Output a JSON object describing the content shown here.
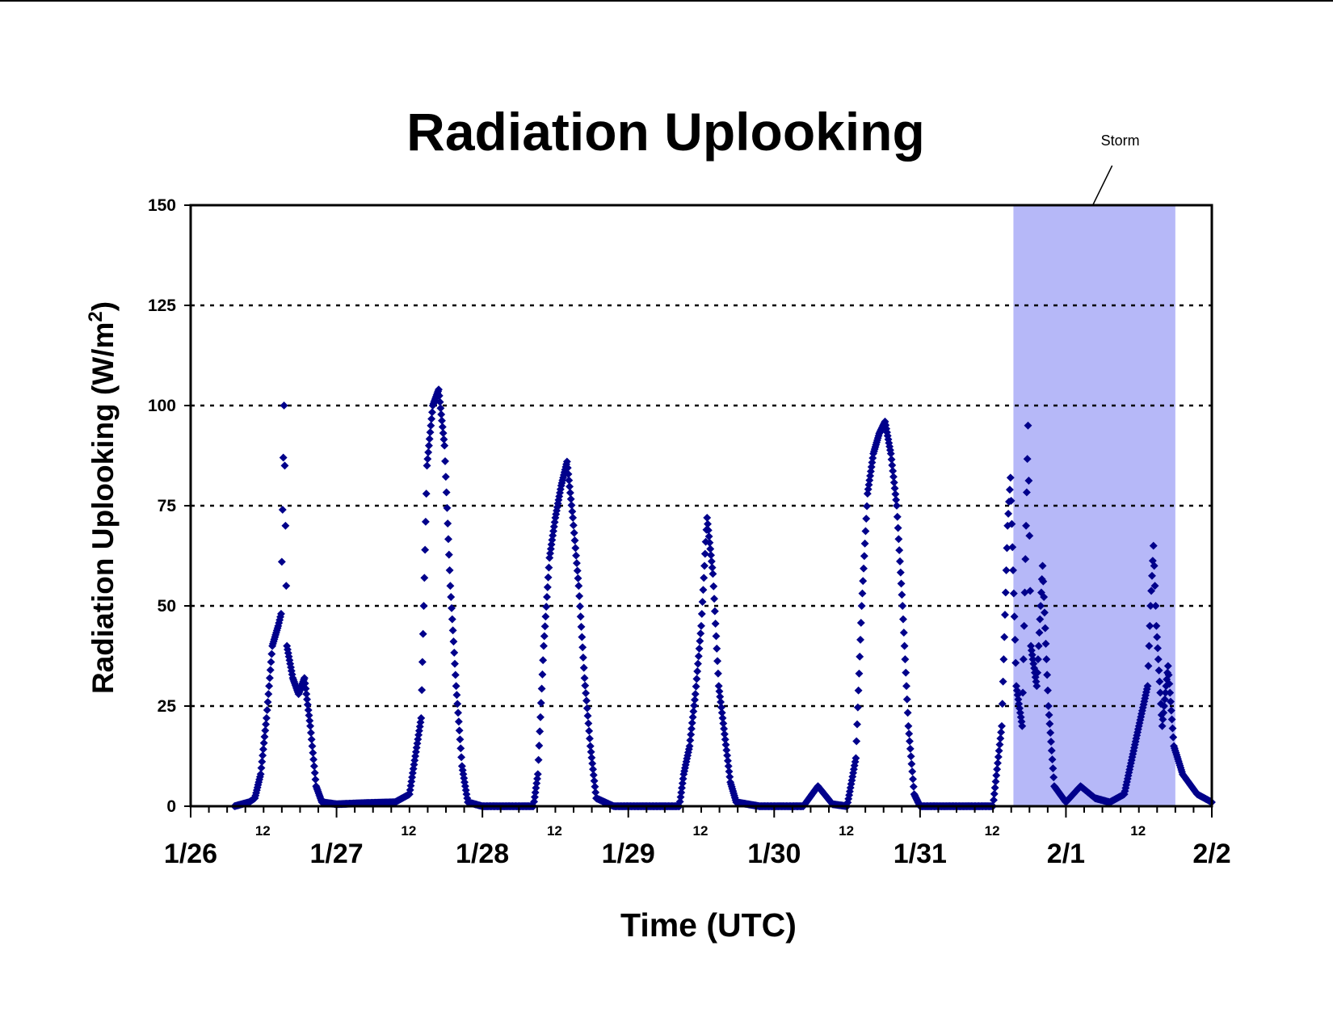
{
  "chart_data": {
    "type": "scatter",
    "title": "Radiation Uplooking",
    "xlabel": "Time (UTC)",
    "ylabel": "Radiation Uplooking (W/m",
    "ylabel_superscript": "2",
    "ylabel_close": ")",
    "ylim": [
      0,
      150
    ],
    "yticks": [
      0,
      25,
      50,
      75,
      100,
      125,
      150
    ],
    "grid": "dotted horizontal lines at each y tick",
    "x_unit": "days since 1/26 00:00 UTC",
    "xlim": [
      0,
      7
    ],
    "date_labels": [
      "1/26",
      "1/27",
      "1/28",
      "1/29",
      "1/30",
      "1/31",
      "2/1",
      "2/2"
    ],
    "noon_label": "12",
    "marker_color": "#00008B",
    "storm": {
      "label": "Storm",
      "start": 5.64,
      "end": 6.75,
      "color": "#B6B8F8"
    },
    "series": [
      {
        "values": [
          [
            0.3,
            0
          ],
          [
            0.4,
            1
          ],
          [
            0.44,
            2
          ],
          [
            0.48,
            8
          ],
          [
            0.52,
            22
          ],
          [
            0.56,
            40
          ],
          [
            0.6,
            45
          ],
          [
            0.62,
            48
          ],
          [
            0.64,
            100
          ],
          [
            0.66,
            40
          ],
          [
            0.7,
            32
          ],
          [
            0.74,
            28
          ],
          [
            0.78,
            32
          ],
          [
            0.82,
            20
          ],
          [
            0.86,
            5
          ],
          [
            0.9,
            1
          ],
          [
            1.0,
            0.5
          ],
          [
            1.2,
            0.8
          ],
          [
            1.4,
            1
          ],
          [
            1.5,
            3
          ],
          [
            1.58,
            22
          ],
          [
            1.62,
            85
          ],
          [
            1.66,
            100
          ],
          [
            1.7,
            104
          ],
          [
            1.74,
            90
          ],
          [
            1.78,
            55
          ],
          [
            1.82,
            30
          ],
          [
            1.86,
            10
          ],
          [
            1.9,
            1
          ],
          [
            2.0,
            0
          ],
          [
            2.2,
            0
          ],
          [
            2.35,
            0
          ],
          [
            2.38,
            8
          ],
          [
            2.42,
            40
          ],
          [
            2.46,
            62
          ],
          [
            2.5,
            72
          ],
          [
            2.54,
            80
          ],
          [
            2.58,
            86
          ],
          [
            2.62,
            72
          ],
          [
            2.66,
            55
          ],
          [
            2.7,
            32
          ],
          [
            2.74,
            15
          ],
          [
            2.78,
            2
          ],
          [
            2.9,
            0
          ],
          [
            3.2,
            0
          ],
          [
            3.35,
            0
          ],
          [
            3.38,
            8
          ],
          [
            3.42,
            15
          ],
          [
            3.46,
            28
          ],
          [
            3.5,
            45
          ],
          [
            3.54,
            72
          ],
          [
            3.58,
            58
          ],
          [
            3.62,
            30
          ],
          [
            3.66,
            18
          ],
          [
            3.7,
            6
          ],
          [
            3.74,
            1
          ],
          [
            3.9,
            0
          ],
          [
            4.2,
            0
          ],
          [
            4.3,
            5
          ],
          [
            4.4,
            0.5
          ],
          [
            4.5,
            0
          ],
          [
            4.56,
            12
          ],
          [
            4.6,
            50
          ],
          [
            4.64,
            78
          ],
          [
            4.68,
            88
          ],
          [
            4.72,
            93
          ],
          [
            4.76,
            96
          ],
          [
            4.8,
            88
          ],
          [
            4.84,
            75
          ],
          [
            4.88,
            50
          ],
          [
            4.92,
            20
          ],
          [
            4.96,
            3
          ],
          [
            5.0,
            0
          ],
          [
            5.3,
            0
          ],
          [
            5.5,
            0
          ],
          [
            5.56,
            20
          ],
          [
            5.6,
            70
          ],
          [
            5.62,
            82
          ],
          [
            5.66,
            30
          ],
          [
            5.7,
            20
          ],
          [
            5.74,
            95
          ],
          [
            5.76,
            40
          ],
          [
            5.8,
            30
          ],
          [
            5.84,
            60
          ],
          [
            5.88,
            25
          ],
          [
            5.92,
            5
          ],
          [
            6.0,
            1
          ],
          [
            6.1,
            5
          ],
          [
            6.2,
            2
          ],
          [
            6.3,
            1
          ],
          [
            6.4,
            3
          ],
          [
            6.5,
            20
          ],
          [
            6.56,
            30
          ],
          [
            6.58,
            50
          ],
          [
            6.6,
            65
          ],
          [
            6.62,
            45
          ],
          [
            6.66,
            20
          ],
          [
            6.7,
            35
          ],
          [
            6.74,
            15
          ],
          [
            6.8,
            8
          ],
          [
            6.9,
            3
          ],
          [
            7.0,
            1
          ]
        ]
      }
    ]
  }
}
